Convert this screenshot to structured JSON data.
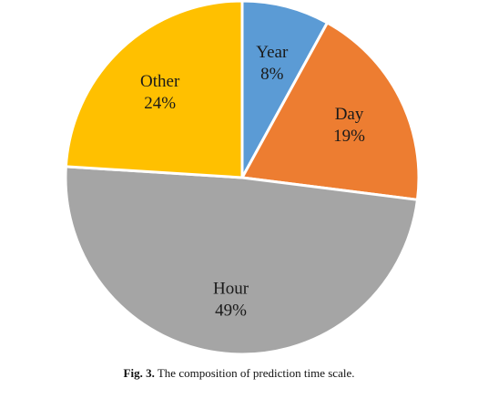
{
  "chart_data": {
    "type": "pie",
    "slices": [
      {
        "label": "Year",
        "percent_label": "8%",
        "value": 8,
        "color": "#5b9bd5"
      },
      {
        "label": "Day",
        "percent_label": "19%",
        "value": 19,
        "color": "#ed7d31"
      },
      {
        "label": "Hour",
        "percent_label": "49%",
        "value": 49,
        "color": "#a5a5a5"
      },
      {
        "label": "Other",
        "percent_label": "24%",
        "value": 24,
        "color": "#ffc000"
      }
    ]
  },
  "caption": {
    "prefix": "Fig. 3.",
    "text": "The composition of prediction time scale."
  }
}
